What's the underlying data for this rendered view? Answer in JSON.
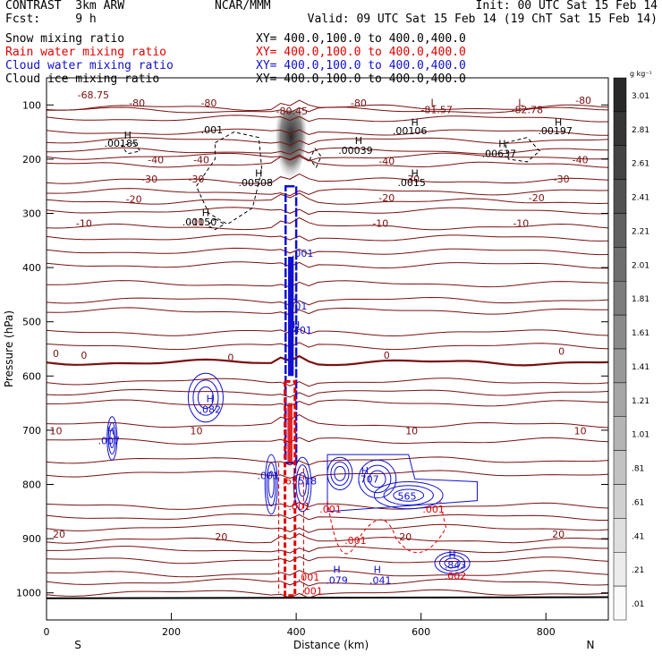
{
  "header": {
    "left1": "CONTRAST  3km ARW",
    "center1": "NCAR/MMM",
    "right1": "Init: 00 UTC Sat 15 Feb 14",
    "left2": "Fcst:     9 h",
    "right2": "Valid: 09 UTC Sat 15 Feb 14 (19 ChT Sat 15 Feb 14)"
  },
  "legend": [
    {
      "name": "Snow mixing ratio",
      "xy": "XY= 400.0,100.0 to 400.0,400.0",
      "color": "#000000"
    },
    {
      "name": "Rain water mixing ratio",
      "xy": "XY= 400.0,100.0 to 400.0,400.0",
      "color": "#e00000"
    },
    {
      "name": "Cloud water mixing ratio",
      "xy": "XY= 400.0,100.0 to 400.0,400.0",
      "color": "#1010d0"
    },
    {
      "name": "Cloud ice mixing ratio",
      "xy": "XY= 400.0,100.0 to 400.0,400.0",
      "color": "#000000"
    }
  ],
  "colors": {
    "temperature": "#7a1010",
    "rain": "#e00000",
    "cloud": "#1010d0",
    "snow": "#000000"
  },
  "chart_data": {
    "type": "cross-section",
    "xlabel": "Distance (km)",
    "ylabel": "Pressure (hPa)",
    "xlim": [
      0,
      900
    ],
    "ylim": [
      1050,
      50
    ],
    "x_ticks": [
      0,
      200,
      400,
      600,
      800
    ],
    "y_ticks": [
      100,
      200,
      300,
      400,
      500,
      600,
      700,
      800,
      900,
      1000
    ],
    "x_end_labels": {
      "left": "S",
      "right": "N"
    },
    "colorbar": {
      "unit": "g kg⁻¹",
      "labels": [
        "3.01",
        "2.81",
        "2.61",
        "2.41",
        "2.21",
        "2.01",
        "1.81",
        "1.61",
        "1.41",
        "1.21",
        "1.01",
        ".81",
        ".61",
        ".41",
        ".21",
        ".01"
      ]
    },
    "temperature_contours": [
      {
        "value": -80,
        "p": 105
      },
      {
        "value": -40,
        "p": 210
      },
      {
        "value": -30,
        "p": 240
      },
      {
        "value": -20,
        "p": 278
      },
      {
        "value": -10,
        "p": 325
      },
      {
        "value": 0,
        "p": 575
      },
      {
        "value": 10,
        "p": 690
      },
      {
        "value": 20,
        "p": 903
      }
    ],
    "contour_labels": [
      {
        "t": "-80",
        "x": 145,
        "p": 103,
        "c": "temperature"
      },
      {
        "t": "-80",
        "x": 260,
        "p": 103,
        "c": "temperature"
      },
      {
        "t": "-80",
        "x": 500,
        "p": 103,
        "c": "temperature"
      },
      {
        "t": "-80",
        "x": 860,
        "p": 98,
        "c": "temperature"
      },
      {
        "t": "-40",
        "x": 175,
        "p": 208,
        "c": "temperature"
      },
      {
        "t": "-40",
        "x": 248,
        "p": 208,
        "c": "temperature"
      },
      {
        "t": "-40",
        "x": 545,
        "p": 210,
        "c": "temperature"
      },
      {
        "t": "-40",
        "x": 855,
        "p": 208,
        "c": "temperature"
      },
      {
        "t": "-30",
        "x": 165,
        "p": 243,
        "c": "temperature"
      },
      {
        "t": "-30",
        "x": 240,
        "p": 243,
        "c": "temperature"
      },
      {
        "t": "-30",
        "x": 585,
        "p": 243,
        "c": "temperature"
      },
      {
        "t": "-30",
        "x": 825,
        "p": 243,
        "c": "temperature"
      },
      {
        "t": "-20",
        "x": 140,
        "p": 280,
        "c": "temperature"
      },
      {
        "t": "-20",
        "x": 545,
        "p": 278,
        "c": "temperature"
      },
      {
        "t": "-20",
        "x": 785,
        "p": 278,
        "c": "temperature"
      },
      {
        "t": "-10",
        "x": 60,
        "p": 325,
        "c": "temperature"
      },
      {
        "t": "-10",
        "x": 240,
        "p": 322,
        "c": "temperature"
      },
      {
        "t": "-10",
        "x": 535,
        "p": 325,
        "c": "temperature"
      },
      {
        "t": "-10",
        "x": 760,
        "p": 325,
        "c": "temperature"
      },
      {
        "t": "0",
        "x": 15,
        "p": 565,
        "c": "temperature"
      },
      {
        "t": "0",
        "x": 60,
        "p": 568,
        "c": "temperature"
      },
      {
        "t": "0",
        "x": 295,
        "p": 572,
        "c": "temperature"
      },
      {
        "t": "0",
        "x": 545,
        "p": 568,
        "c": "temperature"
      },
      {
        "t": "0",
        "x": 825,
        "p": 561,
        "c": "temperature"
      },
      {
        "t": "10",
        "x": 15,
        "p": 708,
        "c": "temperature"
      },
      {
        "t": "10",
        "x": 240,
        "p": 708,
        "c": "temperature"
      },
      {
        "t": "10",
        "x": 585,
        "p": 708,
        "c": "temperature"
      },
      {
        "t": "10",
        "x": 855,
        "p": 708,
        "c": "temperature"
      },
      {
        "t": "20",
        "x": 20,
        "p": 898,
        "c": "temperature"
      },
      {
        "t": "20",
        "x": 280,
        "p": 903,
        "c": "temperature"
      },
      {
        "t": "20",
        "x": 575,
        "p": 903,
        "c": "temperature"
      },
      {
        "t": "20",
        "x": 820,
        "p": 898,
        "c": "temperature"
      },
      {
        "t": "-68.75",
        "x": 75,
        "p": 88,
        "c": "temperature"
      },
      {
        "t": "-80.45",
        "x": 393,
        "p": 118,
        "c": "temperature"
      },
      {
        "t": "L",
        "x": 620,
        "p": 102,
        "c": "temperature"
      },
      {
        "t": "-81.57",
        "x": 625,
        "p": 115,
        "c": "temperature"
      },
      {
        "t": "L",
        "x": 760,
        "p": 102,
        "c": "temperature"
      },
      {
        "t": "-82.78",
        "x": 770,
        "p": 115,
        "c": "temperature"
      },
      {
        "t": "H",
        "x": 130,
        "p": 162,
        "c": "snow"
      },
      {
        "t": ".00185",
        "x": 120,
        "p": 177,
        "c": "snow"
      },
      {
        "t": ".001",
        "x": 265,
        "p": 152,
        "c": "snow"
      },
      {
        "t": "H",
        "x": 340,
        "p": 232,
        "c": "snow"
      },
      {
        "t": ".00508",
        "x": 335,
        "p": 250,
        "c": "snow"
      },
      {
        "t": "H",
        "x": 500,
        "p": 172,
        "c": "snow"
      },
      {
        "t": ".00039",
        "x": 495,
        "p": 190,
        "c": "snow"
      },
      {
        "t": "H",
        "x": 590,
        "p": 138,
        "c": "snow"
      },
      {
        "t": ".00106",
        "x": 582,
        "p": 154,
        "c": "snow"
      },
      {
        "t": "H",
        "x": 590,
        "p": 232,
        "c": "snow"
      },
      {
        "t": ".0015",
        "x": 585,
        "p": 250,
        "c": "snow"
      },
      {
        "t": "H",
        "x": 730,
        "p": 178,
        "c": "snow"
      },
      {
        "t": ".00637",
        "x": 725,
        "p": 196,
        "c": "snow"
      },
      {
        "t": "H",
        "x": 820,
        "p": 138,
        "c": "snow"
      },
      {
        "t": ".00197",
        "x": 815,
        "p": 154,
        "c": "snow"
      },
      {
        "t": "H",
        "x": 255,
        "p": 305,
        "c": "snow"
      },
      {
        "t": ".00150",
        "x": 245,
        "p": 322,
        "c": "snow"
      },
      {
        "t": ".001",
        "x": 410,
        "p": 380,
        "c": "cloud"
      },
      {
        "t": "H",
        "x": 395,
        "p": 465,
        "c": "cloud"
      },
      {
        "t": ".001",
        "x": 400,
        "p": 477,
        "c": "cloud"
      },
      {
        "t": "H",
        "x": 400,
        "p": 512,
        "c": "cloud"
      },
      {
        "t": ".401",
        "x": 408,
        "p": 522,
        "c": "cloud"
      },
      {
        "t": "H",
        "x": 262,
        "p": 648,
        "c": "cloud"
      },
      {
        "t": ".082",
        "x": 262,
        "p": 668,
        "c": "cloud"
      },
      {
        "t": "H",
        "x": 103,
        "p": 708,
        "c": "cloud"
      },
      {
        "t": ".007",
        "x": 100,
        "p": 726,
        "c": "cloud"
      },
      {
        "t": ".001",
        "x": 355,
        "p": 790,
        "c": "cloud"
      },
      {
        "t": "518",
        "x": 418,
        "p": 800,
        "c": "cloud"
      },
      {
        "t": ".65",
        "x": 390,
        "p": 800,
        "c": "rain"
      },
      {
        "t": "H",
        "x": 510,
        "p": 781,
        "c": "cloud"
      },
      {
        "t": ".707",
        "x": 515,
        "p": 797,
        "c": "cloud"
      },
      {
        "t": ".565",
        "x": 575,
        "p": 828,
        "c": "cloud"
      },
      {
        "t": ".001",
        "x": 405,
        "p": 847,
        "c": "rain"
      },
      {
        "t": ".001",
        "x": 455,
        "p": 852,
        "c": "rain"
      },
      {
        "t": ".001",
        "x": 620,
        "p": 852,
        "c": "rain"
      },
      {
        "t": ".001",
        "x": 495,
        "p": 910,
        "c": "rain"
      },
      {
        "t": "H",
        "x": 465,
        "p": 963,
        "c": "cloud"
      },
      {
        "t": ".079",
        "x": 465,
        "p": 983,
        "c": "cloud"
      },
      {
        "t": "H",
        "x": 530,
        "p": 963,
        "c": "cloud"
      },
      {
        "t": ".041",
        "x": 535,
        "p": 983,
        "c": "cloud"
      },
      {
        "t": "H",
        "x": 650,
        "p": 935,
        "c": "cloud"
      },
      {
        "t": ".843",
        "x": 655,
        "p": 955,
        "c": "cloud"
      },
      {
        "t": ".002",
        "x": 655,
        "p": 975,
        "c": "rain"
      },
      {
        "t": ".001",
        "x": 420,
        "p": 977,
        "c": "rain"
      },
      {
        "t": ".001",
        "x": 425,
        "p": 1003,
        "c": "rain"
      }
    ]
  }
}
